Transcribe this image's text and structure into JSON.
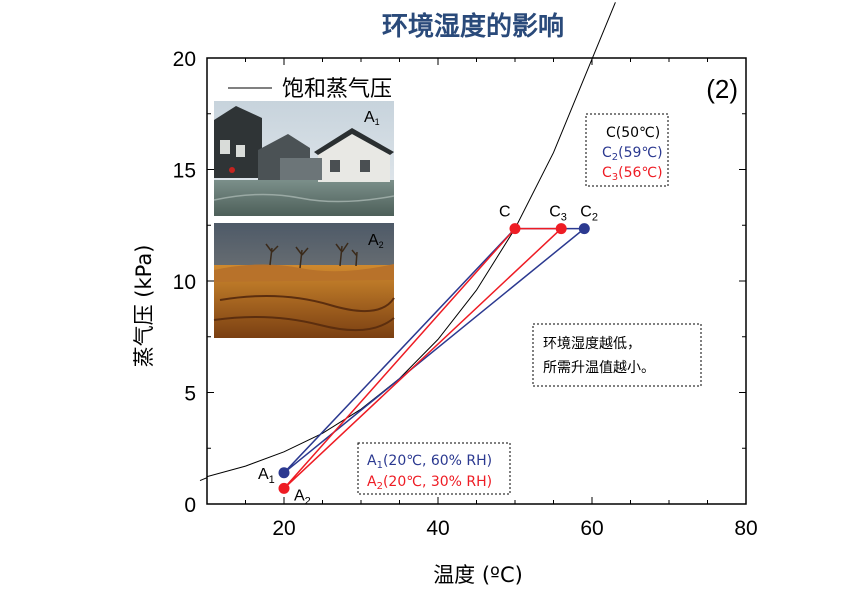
{
  "colors": {
    "blue": "#2b3990",
    "red": "#ee1c24",
    "title": "#2a4a7a",
    "curve": "#000000"
  },
  "chart_data": {
    "type": "line",
    "title": "环境湿度的影响",
    "panel_id": "(2)",
    "xlabel": "温度 (ºC)",
    "ylabel": "蒸气压 (kPa)",
    "xlim": [
      10,
      80
    ],
    "ylim": [
      0,
      20
    ],
    "xticks": [
      20,
      40,
      60,
      80
    ],
    "yticks": [
      0,
      5,
      10,
      15,
      20
    ],
    "grid": false,
    "legend": {
      "position": "top-left",
      "entry": "饱和蒸气压"
    },
    "saturation_curve": {
      "name": "饱和蒸气压",
      "x": [
        10,
        15,
        20,
        25,
        30,
        35,
        40,
        45,
        50,
        55,
        60
      ],
      "y": [
        1.23,
        1.7,
        2.34,
        3.17,
        4.25,
        5.63,
        7.38,
        9.59,
        12.35,
        15.76,
        19.95
      ]
    },
    "points": [
      {
        "label": "A",
        "sub": "1",
        "x": 20,
        "y": 1.4,
        "color": "blue"
      },
      {
        "label": "A",
        "sub": "2",
        "x": 20,
        "y": 0.7,
        "color": "red"
      },
      {
        "label": "C",
        "sub": "",
        "x": 50,
        "y": 12.35,
        "color": "red"
      },
      {
        "label": "C",
        "sub": "3",
        "x": 56,
        "y": 12.35,
        "color": "red"
      },
      {
        "label": "C",
        "sub": "2",
        "x": 59,
        "y": 12.35,
        "color": "blue"
      }
    ],
    "series": [
      {
        "color": "blue",
        "x": [
          20,
          50,
          59,
          20
        ],
        "y": [
          1.4,
          12.35,
          12.35,
          1.4
        ]
      },
      {
        "color": "red",
        "x": [
          20,
          50,
          56,
          20
        ],
        "y": [
          0.7,
          12.35,
          12.35,
          0.7
        ]
      }
    ],
    "annotations": {
      "c_box": [
        {
          "pre": "C",
          "sub": "",
          "post": "(50℃)",
          "color": "black"
        },
        {
          "pre": "C",
          "sub": "2",
          "post": "(59℃)",
          "color": "blue"
        },
        {
          "pre": "C",
          "sub": "3",
          "post": "(56℃)",
          "color": "red"
        }
      ],
      "note_box": [
        "环境湿度越低，",
        "所需升温值越小。"
      ],
      "a_box": [
        {
          "pre": "A",
          "sub": "1",
          "post": "(20℃, 60% RH)",
          "color": "blue"
        },
        {
          "pre": "A",
          "sub": "2",
          "post": "(20℃, 30% RH)",
          "color": "red"
        }
      ]
    }
  },
  "photos": [
    {
      "label": "A",
      "sub": "1",
      "scene": "water-town"
    },
    {
      "label": "A",
      "sub": "2",
      "scene": "dry-land"
    }
  ]
}
